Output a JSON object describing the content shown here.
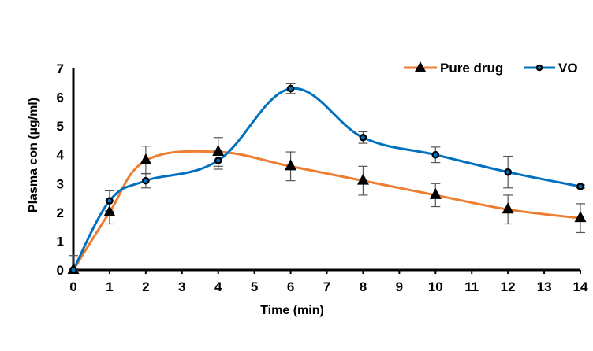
{
  "chart_data": {
    "type": "line",
    "title": "",
    "xlabel": "Time (min)",
    "ylabel": "Plasma con (µg/ml)",
    "xlim": [
      0,
      14
    ],
    "ylim": [
      0,
      7
    ],
    "x_ticks": [
      "0",
      "1",
      "2",
      "3",
      "4",
      "5",
      "6",
      "7",
      "8",
      "9",
      "10",
      "11",
      "12",
      "13",
      "14"
    ],
    "y_ticks": [
      "0",
      "1",
      "2",
      "3",
      "4",
      "5",
      "6",
      "7"
    ],
    "grid": false,
    "legend_position": "top-right",
    "series": [
      {
        "name": "Pure drug",
        "color": "#ED7D31",
        "marker": "triangle",
        "x": [
          0,
          1,
          2,
          4,
          6,
          8,
          10,
          12,
          14
        ],
        "y": [
          0,
          2.0,
          3.8,
          4.1,
          3.6,
          3.1,
          2.6,
          2.1,
          1.8
        ],
        "error": [
          0.05,
          0.4,
          0.5,
          0.5,
          0.5,
          0.5,
          0.4,
          0.5,
          0.5
        ]
      },
      {
        "name": "VO",
        "color": "#0070C0",
        "marker": "circle",
        "x": [
          0,
          1,
          2,
          4,
          6,
          8,
          10,
          12,
          14
        ],
        "y": [
          0,
          2.4,
          3.1,
          3.8,
          6.3,
          4.6,
          4.0,
          3.4,
          2.9
        ],
        "error": [
          0.5,
          0.35,
          0.25,
          0.3,
          0.17,
          0.2,
          0.27,
          0.55,
          0.05
        ]
      }
    ]
  }
}
